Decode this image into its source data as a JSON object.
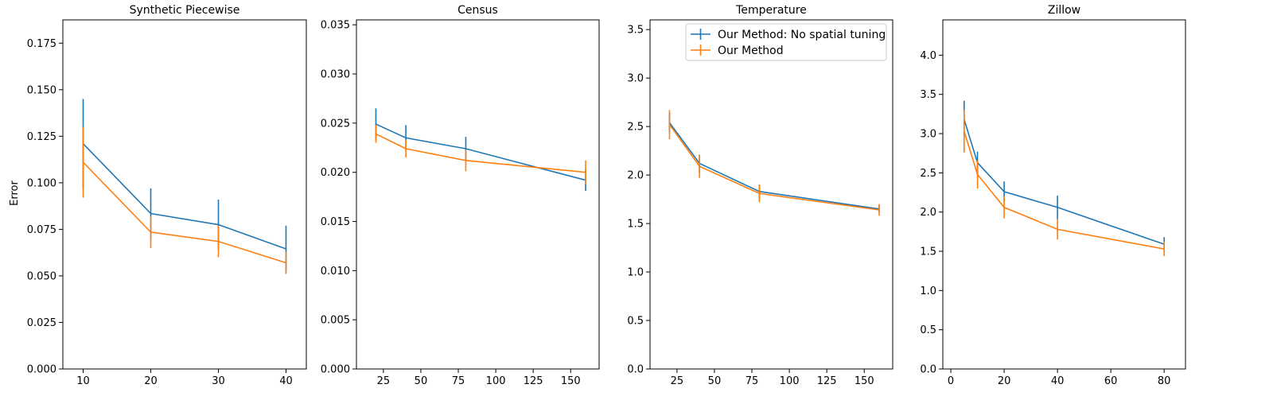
{
  "figure": {
    "ylabel": "Error"
  },
  "legend": {
    "placement": "upper-right of Temperature panel",
    "entries": [
      {
        "name": "Our Method: No spatial tuning",
        "color": "#1f77b4"
      },
      {
        "name": "Our Method",
        "color": "#ff7f0e"
      }
    ]
  },
  "chart_data": [
    {
      "type": "line",
      "title": "Synthetic Piecewise",
      "xlabel": "",
      "ylabel": "Error",
      "xlim": [
        7,
        43
      ],
      "ylim": [
        0,
        0.1875
      ],
      "xticks": [
        10,
        20,
        30,
        40
      ],
      "xtick_labels": [
        "10",
        "20",
        "30",
        "40"
      ],
      "yticks": [
        0,
        0.025,
        0.05,
        0.075,
        0.1,
        0.125,
        0.15,
        0.175
      ],
      "ytick_labels": [
        "0.000",
        "0.025",
        "0.050",
        "0.075",
        "0.100",
        "0.125",
        "0.150",
        "0.175"
      ],
      "x": [
        10,
        20,
        30,
        40
      ],
      "series": [
        {
          "name": "Our Method: No spatial tuning",
          "color": "#1f77b4",
          "values": [
            0.121,
            0.0835,
            0.0775,
            0.0645
          ],
          "err": [
            0.024,
            0.0135,
            0.0135,
            0.0125
          ]
        },
        {
          "name": "Our Method",
          "color": "#ff7f0e",
          "values": [
            0.111,
            0.0735,
            0.0685,
            0.057
          ],
          "err": [
            0.019,
            0.0085,
            0.0085,
            0.006
          ]
        }
      ]
    },
    {
      "type": "line",
      "title": "Census",
      "xlabel": "",
      "ylabel": "",
      "xlim": [
        7,
        169
      ],
      "ylim": [
        0,
        0.0355
      ],
      "xticks": [
        25,
        50,
        75,
        100,
        125,
        150
      ],
      "xtick_labels": [
        "25",
        "50",
        "75",
        "100",
        "125",
        "150"
      ],
      "yticks": [
        0,
        0.005,
        0.01,
        0.015,
        0.02,
        0.025,
        0.03,
        0.035
      ],
      "ytick_labels": [
        "0.000",
        "0.005",
        "0.010",
        "0.015",
        "0.020",
        "0.025",
        "0.030",
        "0.035"
      ],
      "x": [
        20,
        40,
        80,
        160
      ],
      "series": [
        {
          "name": "Our Method: No spatial tuning",
          "color": "#1f77b4",
          "values": [
            0.0249,
            0.0235,
            0.0224,
            0.0192
          ],
          "err": [
            0.0016,
            0.0013,
            0.0012,
            0.0011
          ]
        },
        {
          "name": "Our Method",
          "color": "#ff7f0e",
          "values": [
            0.0239,
            0.0224,
            0.0212,
            0.02
          ],
          "err": [
            0.0009,
            0.0009,
            0.0011,
            0.0012
          ]
        }
      ]
    },
    {
      "type": "line",
      "title": "Temperature",
      "xlabel": "",
      "ylabel": "",
      "xlim": [
        7,
        169
      ],
      "ylim": [
        0,
        3.6
      ],
      "xticks": [
        25,
        50,
        75,
        100,
        125,
        150
      ],
      "xtick_labels": [
        "25",
        "50",
        "75",
        "100",
        "125",
        "150"
      ],
      "yticks": [
        0,
        0.5,
        1,
        1.5,
        2,
        2.5,
        3,
        3.5
      ],
      "ytick_labels": [
        "0.0",
        "0.5",
        "1.0",
        "1.5",
        "2.0",
        "2.5",
        "3.0",
        "3.5"
      ],
      "x": [
        20,
        40,
        80,
        160
      ],
      "series": [
        {
          "name": "Our Method: No spatial tuning",
          "color": "#1f77b4",
          "values": [
            2.54,
            2.12,
            1.83,
            1.65
          ],
          "err": [
            0.1,
            0.09,
            0.07,
            0.04
          ]
        },
        {
          "name": "Our Method",
          "color": "#ff7f0e",
          "values": [
            2.52,
            2.09,
            1.81,
            1.64
          ],
          "err": [
            0.15,
            0.12,
            0.09,
            0.06
          ]
        }
      ]
    },
    {
      "type": "line",
      "title": "Zillow",
      "xlabel": "",
      "ylabel": "",
      "xlim": [
        -3,
        88
      ],
      "ylim": [
        0,
        4.45
      ],
      "xticks": [
        0,
        20,
        40,
        60,
        80
      ],
      "xtick_labels": [
        "0",
        "20",
        "40",
        "60",
        "80"
      ],
      "yticks": [
        0,
        0.5,
        1,
        1.5,
        2,
        2.5,
        3,
        3.5,
        4
      ],
      "ytick_labels": [
        "0.0",
        "0.5",
        "1.0",
        "1.5",
        "2.0",
        "2.5",
        "3.0",
        "3.5",
        "4.0"
      ],
      "x": [
        5,
        10,
        20,
        40,
        80
      ],
      "series": [
        {
          "name": "Our Method: No spatial tuning",
          "color": "#1f77b4",
          "values": [
            3.18,
            2.63,
            2.26,
            2.06,
            1.59
          ],
          "err": [
            0.24,
            0.14,
            0.13,
            0.15,
            0.09
          ]
        },
        {
          "name": "Our Method",
          "color": "#ff7f0e",
          "values": [
            3.03,
            2.48,
            2.06,
            1.78,
            1.53
          ],
          "err": [
            0.27,
            0.18,
            0.14,
            0.13,
            0.09
          ]
        }
      ]
    }
  ]
}
